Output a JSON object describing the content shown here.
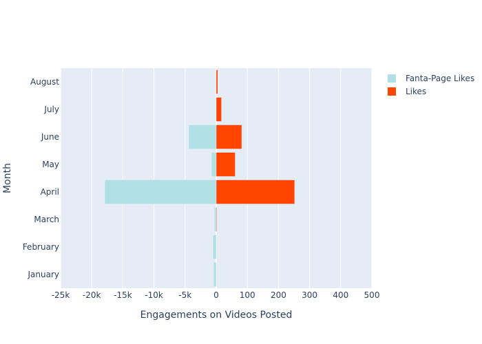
{
  "chart_data": {
    "type": "bar",
    "orientation": "horizontal",
    "categories": [
      "January",
      "February",
      "March",
      "April",
      "May",
      "June",
      "July",
      "August"
    ],
    "series": [
      {
        "name": "Fanta-Page Likes",
        "color": "#b0e0e6",
        "axis": "left",
        "values": [
          -430,
          -500,
          -280,
          -17900,
          -760,
          -4400,
          0,
          0
        ]
      },
      {
        "name": "Likes",
        "color": "#ff4500",
        "axis": "right",
        "values": [
          0,
          0,
          2,
          252,
          61,
          82,
          17,
          5
        ]
      }
    ],
    "xaxis_left": {
      "range": [
        -25000,
        0
      ],
      "ticks": [
        -25000,
        -20000,
        -15000,
        -10000,
        -5000
      ],
      "ticklabels": [
        "-25k",
        "-20k",
        "-15k",
        "-10k",
        "-5k"
      ]
    },
    "xaxis_right": {
      "range": [
        0,
        500
      ],
      "ticks": [
        0,
        100,
        200,
        300,
        400,
        500
      ],
      "ticklabels": [
        "0",
        "100",
        "200",
        "300",
        "400",
        "500"
      ]
    },
    "xlabel": "Engagements on Videos Posted",
    "ylabel": "Month",
    "legend_position": "top-right",
    "grid": true
  }
}
